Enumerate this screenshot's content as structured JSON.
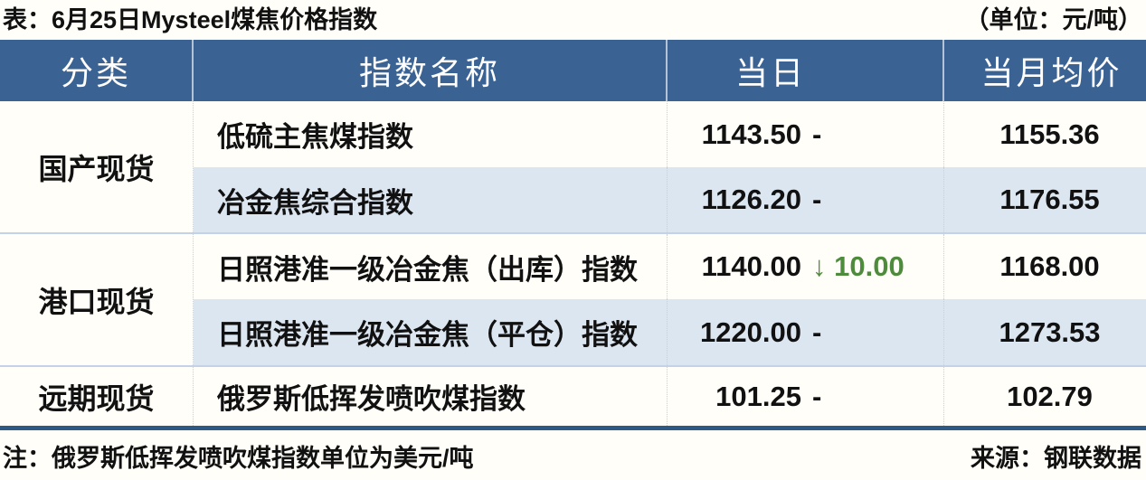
{
  "title": "表：6月25日Mysteel煤焦价格指数",
  "unit": "（单位：元/吨）",
  "columns": [
    "分类",
    "指数名称",
    "当日",
    "当月均价"
  ],
  "groups": [
    {
      "category": "国产现货",
      "rows": [
        {
          "name": "低硫主焦煤指数",
          "daily": "1143.50",
          "change_text": "-",
          "change_dir": "flat",
          "monthly": "1155.36"
        },
        {
          "name": "冶金焦综合指数",
          "daily": "1126.20",
          "change_text": "-",
          "change_dir": "flat",
          "monthly": "1176.55"
        }
      ]
    },
    {
      "category": "港口现货",
      "rows": [
        {
          "name": "日照港准一级冶金焦（出库）指数",
          "daily": "1140.00",
          "change_text": "↓ 10.00",
          "change_dir": "down",
          "monthly": "1168.00"
        },
        {
          "name": "日照港准一级冶金焦（平仓）指数",
          "daily": "1220.00",
          "change_text": "-",
          "change_dir": "flat",
          "monthly": "1273.53"
        }
      ]
    },
    {
      "category": "远期现货",
      "rows": [
        {
          "name": "俄罗斯低挥发喷吹煤指数",
          "daily": "101.25",
          "change_text": "-",
          "change_dir": "flat",
          "monthly": "102.79"
        }
      ]
    }
  ],
  "footnote": "注：俄罗斯低挥发喷吹煤指数单位为美元/吨",
  "source": "来源：钢联数据",
  "colors": {
    "header_bg": "#3A6292",
    "alt_row_bg": "#DCE6F1",
    "down_green": "#4E8B3D",
    "bottom_rule": "#2E5984",
    "group_divider": "#C3D2E6"
  }
}
